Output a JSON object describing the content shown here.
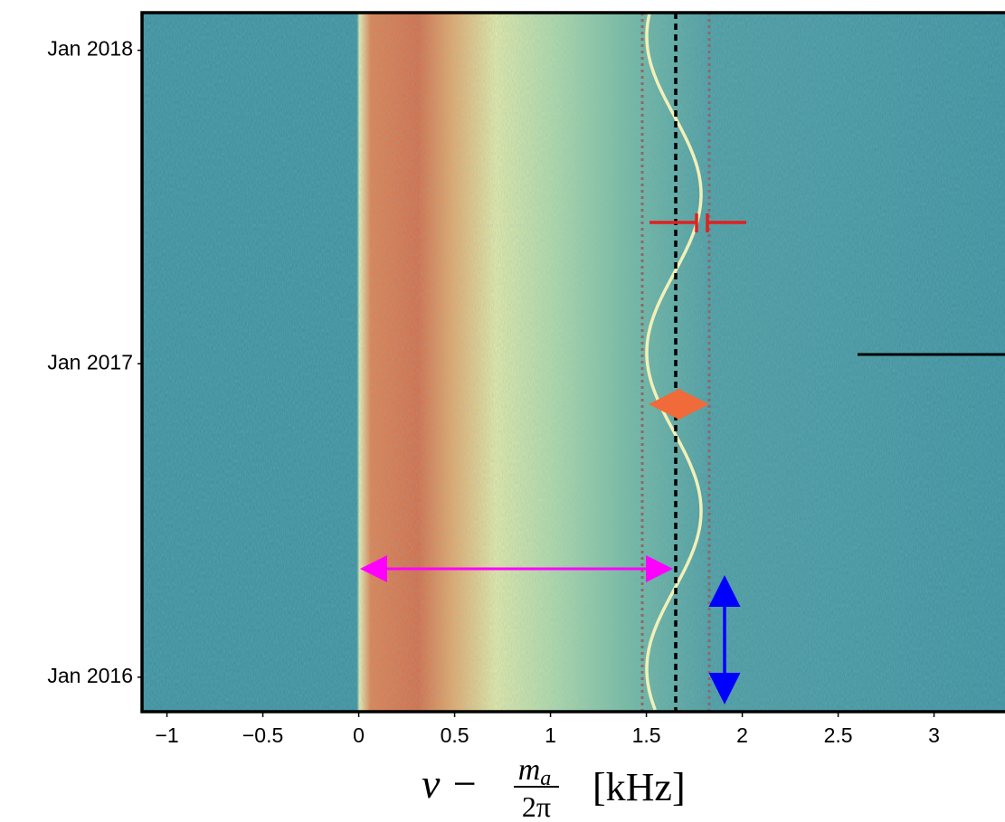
{
  "chart_data": {
    "type": "heatmap",
    "xlim": [
      -1.13,
      3.37
    ],
    "xticks": [
      {
        "value": -1,
        "label": "−1"
      },
      {
        "value": -0.5,
        "label": "−0.5"
      },
      0,
      0.5,
      1,
      1.5,
      2,
      2.5,
      3
    ],
    "ylim": [
      2015.89,
      2018.12
    ],
    "yticks": [
      {
        "value": 2016,
        "label": "Jan 2016"
      },
      {
        "value": 2017,
        "label": "Jan 2017"
      },
      {
        "value": 2018,
        "label": "Jan 2018"
      }
    ],
    "xlabel": {
      "lhs": "ν −",
      "num": "m",
      "sub": "a",
      "den": "2π",
      "unit": "[kHz]"
    }
  }
}
